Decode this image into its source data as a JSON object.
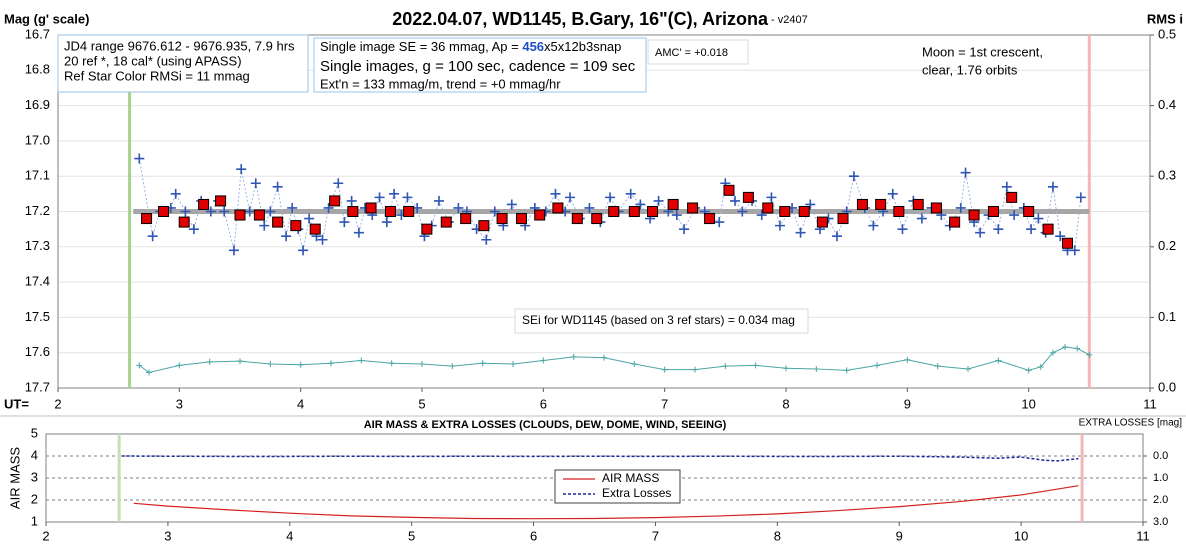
{
  "chart_data": [
    {
      "type": "line",
      "title": "2022.04.07, WD1145, B.Gary, 16\"(C), Arizona",
      "subtitle": " - v2407",
      "ylabel": "Mag (g' scale)",
      "y2label": "RMS i",
      "xlabel": "UT=",
      "xlim": [
        2,
        11
      ],
      "xticks": [
        2,
        3,
        4,
        5,
        6,
        7,
        8,
        9,
        10,
        11
      ],
      "ylim": [
        16.7,
        17.7
      ],
      "y_inverted": true,
      "yticks": [
        16.7,
        16.8,
        16.9,
        {
          "value": 17,
          "label": "17.0"
        },
        17.1,
        17.2,
        17.3,
        17.4,
        17.5,
        17.6,
        17.7
      ],
      "y2lim": [
        0,
        0.5
      ],
      "y2ticks": [
        {
          "value": 0,
          "label": "0.0"
        },
        0.1,
        0.2,
        0.3,
        0.4,
        0.5
      ],
      "grid": true,
      "vlines": [
        {
          "x": 2.59,
          "color": "#a9d18e"
        },
        {
          "x": 10.5,
          "color": "#f4b6b6"
        }
      ],
      "series": [
        {
          "color": "#a6a6a6",
          "line": "solid",
          "width": 5,
          "marker": "none",
          "x": [
            2.62,
            10.5
          ],
          "values": [
            17.2,
            17.2
          ]
        },
        {
          "color": "#2f55b5",
          "line": "dotted",
          "width": 1,
          "marker": "cross",
          "x": [
            2.67,
            2.78,
            2.84,
            2.93,
            2.97,
            3.05,
            3.12,
            3.18,
            3.26,
            3.32,
            3.37,
            3.45,
            3.51,
            3.58,
            3.63,
            3.7,
            3.75,
            3.81,
            3.88,
            3.93,
            3.98,
            4.02,
            4.07,
            4.13,
            4.18,
            4.23,
            4.31,
            4.36,
            4.42,
            4.48,
            4.53,
            4.59,
            4.65,
            4.71,
            4.77,
            4.83,
            4.88,
            4.96,
            5.02,
            5.08,
            5.14,
            5.22,
            5.3,
            5.37,
            5.45,
            5.53,
            5.6,
            5.67,
            5.74,
            5.85,
            5.93,
            6.02,
            6.1,
            6.18,
            6.22,
            6.3,
            6.38,
            6.47,
            6.55,
            6.62,
            6.72,
            6.8,
            6.88,
            6.95,
            7.03,
            7.1,
            7.16,
            7.25,
            7.33,
            7.45,
            7.5,
            7.58,
            7.64,
            7.72,
            7.8,
            7.88,
            7.95,
            8.05,
            8.12,
            8.2,
            8.28,
            8.35,
            8.42,
            8.5,
            8.56,
            8.65,
            8.72,
            8.8,
            8.88,
            8.96,
            9.05,
            9.12,
            9.2,
            9.28,
            9.35,
            9.44,
            9.48,
            9.55,
            9.6,
            9.67,
            9.75,
            9.82,
            9.88,
            9.96,
            10.02,
            10.08,
            10.14,
            10.2,
            10.26,
            10.32,
            10.38,
            10.43
          ],
          "values": [
            17.05,
            17.27,
            17.2,
            17.19,
            17.15,
            17.2,
            17.25,
            17.17,
            17.2,
            17.17,
            17.2,
            17.31,
            17.08,
            17.2,
            17.12,
            17.24,
            17.2,
            17.13,
            17.27,
            17.19,
            17.25,
            17.31,
            17.22,
            17.27,
            17.28,
            17.19,
            17.12,
            17.23,
            17.17,
            17.26,
            17.19,
            17.21,
            17.16,
            17.23,
            17.15,
            17.21,
            17.16,
            17.19,
            17.27,
            17.24,
            17.17,
            17.23,
            17.19,
            17.2,
            17.25,
            17.28,
            17.2,
            17.24,
            17.18,
            17.24,
            17.19,
            17.2,
            17.15,
            17.2,
            17.16,
            17.22,
            17.19,
            17.23,
            17.16,
            17.2,
            17.15,
            17.18,
            17.22,
            17.17,
            17.2,
            17.21,
            17.25,
            17.19,
            17.2,
            17.23,
            17.12,
            17.17,
            17.2,
            17.17,
            17.21,
            17.16,
            17.24,
            17.19,
            17.26,
            17.18,
            17.25,
            17.22,
            17.27,
            17.2,
            17.1,
            17.19,
            17.24,
            17.2,
            17.15,
            17.25,
            17.17,
            17.22,
            17.19,
            17.21,
            17.24,
            17.19,
            17.09,
            17.23,
            17.26,
            17.21,
            17.25,
            17.13,
            17.21,
            17.19,
            17.25,
            17.22,
            17.26,
            17.13,
            17.27,
            17.31,
            17.31,
            17.16
          ]
        },
        {
          "color": "#e00000",
          "marker": "square",
          "x": [
            2.73,
            2.87,
            3.04,
            3.2,
            3.34,
            3.5,
            3.66,
            3.81,
            3.96,
            4.12,
            4.28,
            4.43,
            4.58,
            4.74,
            4.89,
            5.04,
            5.2,
            5.36,
            5.51,
            5.66,
            5.82,
            5.97,
            6.12,
            6.28,
            6.44,
            6.58,
            6.75,
            6.9,
            7.07,
            7.23,
            7.37,
            7.53,
            7.69,
            7.85,
            7.99,
            8.15,
            8.3,
            8.47,
            8.63,
            8.78,
            8.93,
            9.09,
            9.24,
            9.39,
            9.55,
            9.71,
            9.86,
            10,
            10.16,
            10.32
          ],
          "values": [
            17.22,
            17.2,
            17.23,
            17.18,
            17.17,
            17.21,
            17.21,
            17.23,
            17.24,
            17.25,
            17.17,
            17.2,
            17.19,
            17.2,
            17.2,
            17.25,
            17.23,
            17.22,
            17.24,
            17.22,
            17.22,
            17.21,
            17.19,
            17.22,
            17.22,
            17.2,
            17.2,
            17.2,
            17.18,
            17.19,
            17.22,
            17.14,
            17.16,
            17.19,
            17.2,
            17.2,
            17.23,
            17.22,
            17.18,
            17.18,
            17.2,
            17.18,
            17.19,
            17.23,
            17.21,
            17.2,
            17.16,
            17.2,
            17.25,
            17.29
          ]
        },
        {
          "color": "#4aa5a5",
          "line": "solid",
          "width": 1,
          "marker": "cross",
          "axis": "y2",
          "x": [
            2.67,
            2.75,
            3,
            3.25,
            3.5,
            3.75,
            4,
            4.25,
            4.5,
            4.75,
            5,
            5.25,
            5.5,
            5.75,
            6,
            6.25,
            6.5,
            6.75,
            7,
            7.25,
            7.5,
            7.75,
            8,
            8.25,
            8.5,
            8.75,
            9,
            9.25,
            9.5,
            9.75,
            10,
            10.1,
            10.2,
            10.3,
            10.4,
            10.5
          ],
          "values": [
            0.032,
            0.022,
            0.032,
            0.037,
            0.038,
            0.034,
            0.033,
            0.035,
            0.039,
            0.035,
            0.034,
            0.031,
            0.035,
            0.034,
            0.039,
            0.044,
            0.043,
            0.034,
            0.026,
            0.026,
            0.031,
            0.032,
            0.028,
            0.027,
            0.025,
            0.032,
            0.04,
            0.031,
            0.027,
            0.039,
            0.025,
            0.03,
            0.05,
            0.058,
            0.056,
            0.047
          ]
        }
      ],
      "annotations": [
        {
          "border": "#9dc3e6",
          "lines": [
            "JD4 range 9676.612 - 9676.935, 7.9 hrs",
            "20 ref *, 18 cal* (using APASS)",
            "Ref Star Color RMSi = 11 mmag"
          ]
        },
        {
          "border": "#9dc3e6",
          "lines": [
            [
              {
                "text": "Single image SE = 36 mmag, Ap = "
              },
              {
                "text": "456",
                "color": "#2050c0",
                "bold": true
              },
              {
                "text": "x5x12b3snap"
              }
            ],
            "Single images, g = 100 sec, cadence = 109 sec",
            "Ext'n = 133 mmag/m, trend = +0 mmag/hr"
          ]
        },
        {
          "border": "#d9d9d9",
          "lines": [
            "AMC' = +0.018"
          ]
        },
        {
          "lines": [
            "Moon = 1st crescent,",
            "clear,  1.76 orbits"
          ]
        },
        {
          "border": "#d9d9d9",
          "lines": [
            "SEi for WD1145 (based on 3 ref stars) = 0.034 mag"
          ]
        }
      ]
    },
    {
      "type": "line",
      "title": "AIR MASS & EXTRA LOSSES (CLOUDS, DEW, DOME, WIND, SEEING)",
      "ylabel": "AIR MASS",
      "y2label": "EXTRA LOSSES [mag]",
      "xlim": [
        2,
        11
      ],
      "xticks": [
        2,
        3,
        4,
        5,
        6,
        7,
        8,
        9,
        10,
        11
      ],
      "ylim": [
        1,
        5
      ],
      "yticks": [
        1,
        2,
        3,
        4,
        5
      ],
      "y2lim": [
        -1,
        3
      ],
      "y2_inverted": true,
      "y2ticks": [
        {
          "value": 0,
          "label": "0.0"
        },
        {
          "value": 1,
          "label": "1.0"
        },
        {
          "value": 2,
          "label": "2.0"
        },
        {
          "value": 3,
          "label": "3.0"
        }
      ],
      "grid": "dashed",
      "vlines": [
        {
          "x": 2.6,
          "color": "#c5e0b4"
        },
        {
          "x": 10.5,
          "color": "#f4b6b6"
        }
      ],
      "series": [
        {
          "name": "AIR MASS",
          "color": "#d62020",
          "line": "solid",
          "width": 1.2,
          "marker": "none",
          "x": [
            2.72,
            3,
            3.5,
            4,
            4.5,
            5,
            5.5,
            6,
            6.5,
            7,
            7.5,
            8,
            8.5,
            9,
            9.5,
            10,
            10.47
          ],
          "values": [
            1.85,
            1.72,
            1.55,
            1.4,
            1.28,
            1.21,
            1.16,
            1.15,
            1.16,
            1.2,
            1.27,
            1.37,
            1.52,
            1.7,
            1.93,
            2.23,
            2.65
          ]
        },
        {
          "name": "Extra Losses",
          "color": "#1a2a9a",
          "line": "dashed",
          "width": 1.5,
          "marker": "none",
          "axis": "y2",
          "x": [
            2.62,
            3,
            3.5,
            4,
            4.5,
            5,
            5.5,
            6,
            6.5,
            7,
            7.5,
            8,
            8.5,
            9,
            9.5,
            9.8,
            10,
            10.2,
            10.3,
            10.47
          ],
          "values": [
            0,
            0.01,
            0.02,
            0.02,
            0.01,
            0.02,
            0.01,
            0.02,
            0.01,
            0.02,
            0.01,
            0.02,
            0.02,
            0.01,
            0.05,
            0.1,
            0.05,
            0.2,
            0.22,
            0.12
          ]
        }
      ]
    }
  ]
}
